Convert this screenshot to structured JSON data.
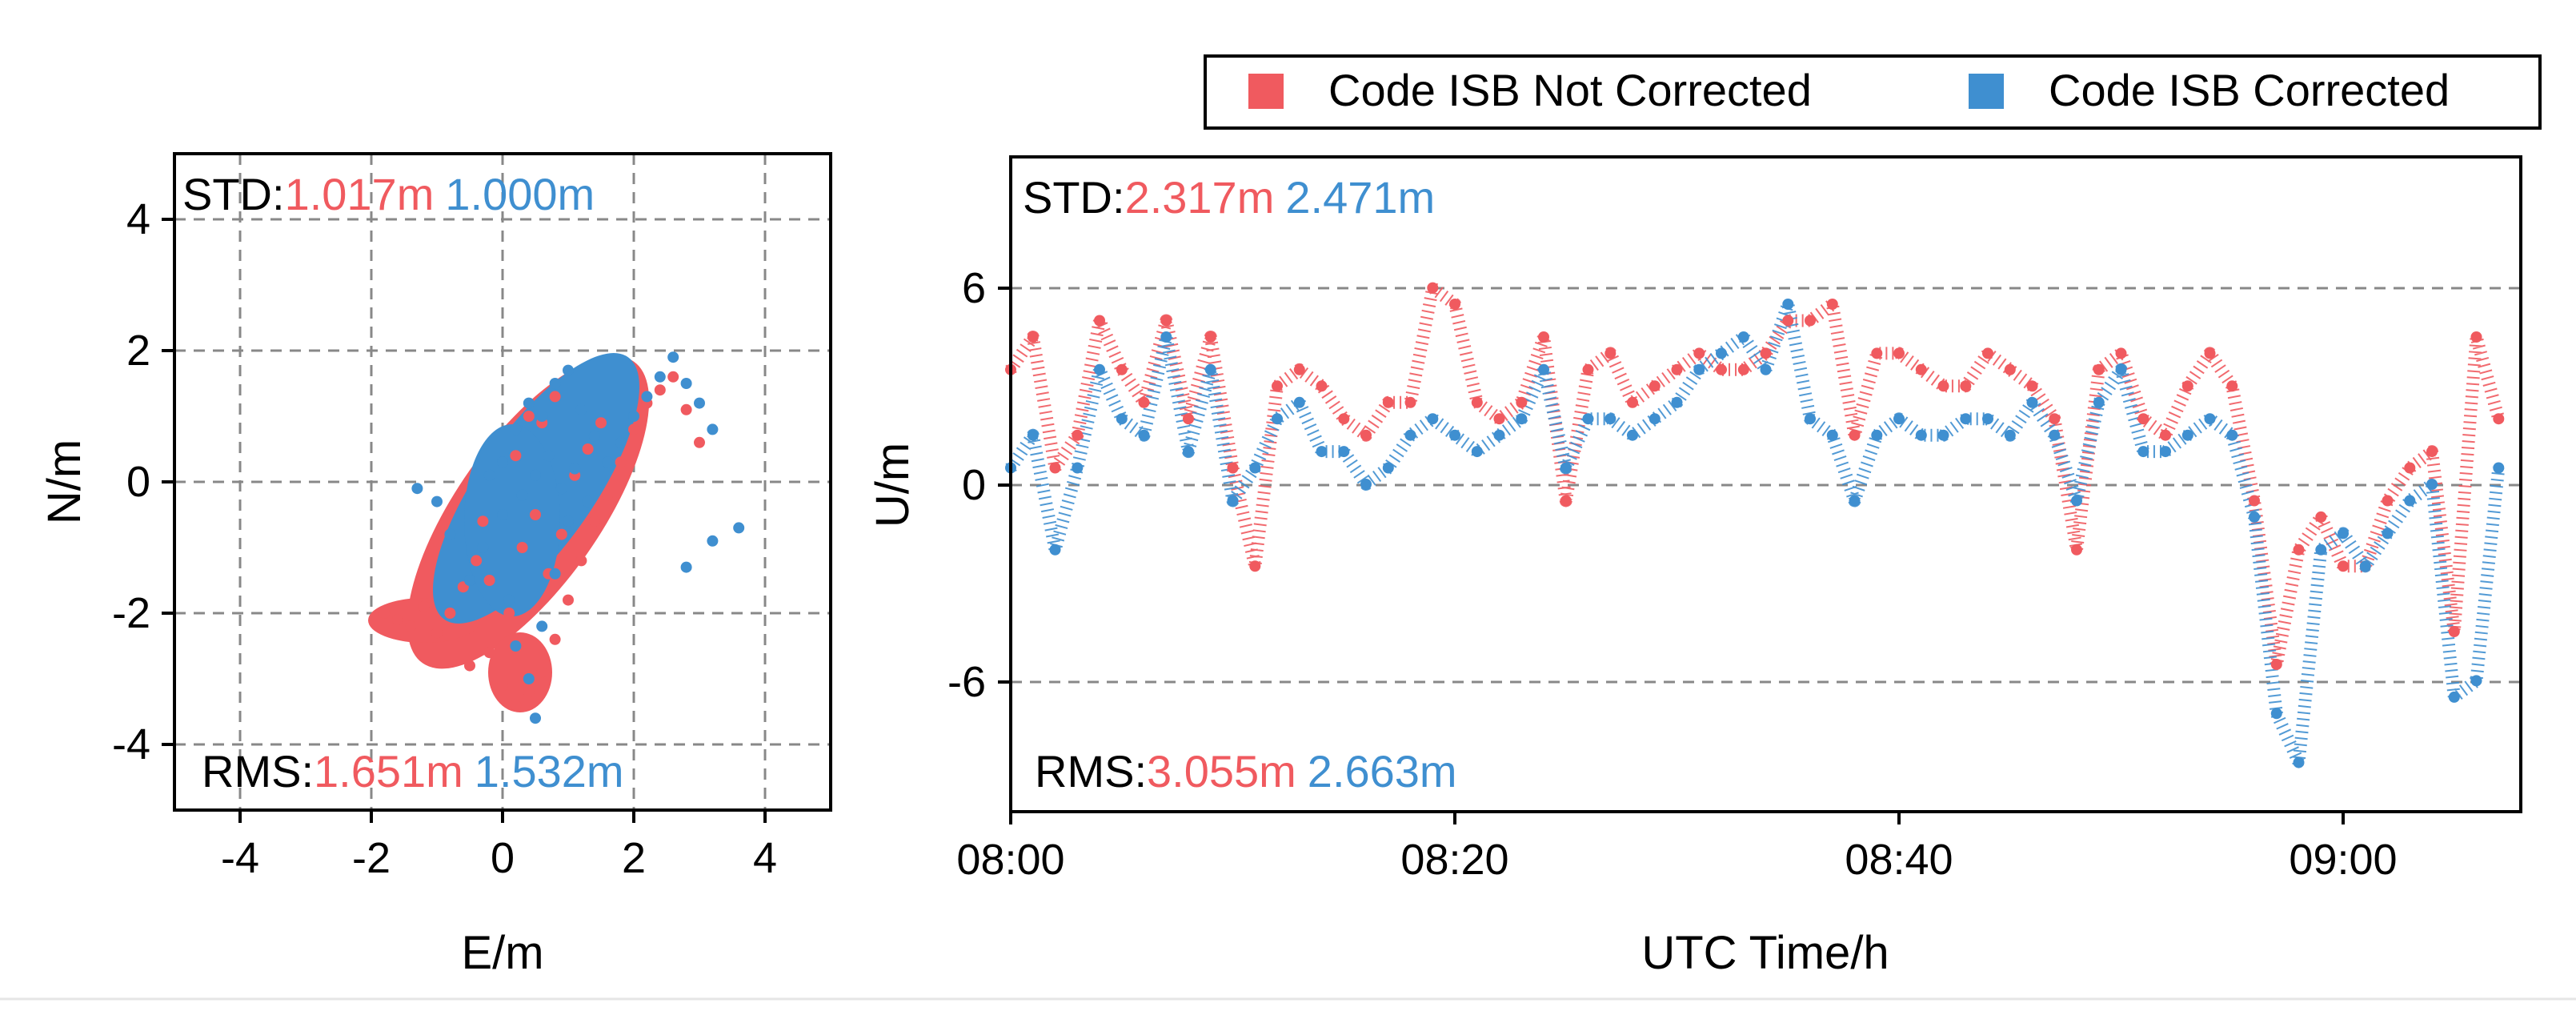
{
  "colors": {
    "not_corrected": "#f05a5f",
    "corrected": "#3f8fd0",
    "grid": "#888888",
    "axis": "#000000"
  },
  "legend": {
    "items": [
      "Code ISB Not Corrected",
      "Code ISB Corrected"
    ]
  },
  "chart_data": [
    {
      "type": "scatter",
      "title": "",
      "xlabel": "E/m",
      "ylabel": "N/m",
      "xlim": [
        -5,
        5
      ],
      "ylim": [
        -5,
        5
      ],
      "xticks": [
        -4,
        -2,
        0,
        2,
        4
      ],
      "yticks": [
        -4,
        -2,
        0,
        2,
        4
      ],
      "xtick_labels": [
        "-4",
        "-2",
        "0",
        "2",
        "4"
      ],
      "ytick_labels": [
        "-4",
        "-2",
        "0",
        "2",
        "4"
      ],
      "grid": true,
      "stats": {
        "std_label": "STD:",
        "rms_label": "RMS:",
        "std": [
          "1.017m",
          "1.000m"
        ],
        "rms": [
          "1.651m",
          "1.532m"
        ]
      },
      "series": [
        {
          "name": "Code ISB Not Corrected",
          "points": [
            [
              -1.8,
              -2.0
            ],
            [
              -1.6,
              -2.1
            ],
            [
              -1.4,
              -2.2
            ],
            [
              -1.2,
              -1.9
            ],
            [
              -1.0,
              -2.3
            ],
            [
              -0.8,
              -2.0
            ],
            [
              -0.6,
              -1.6
            ],
            [
              -0.4,
              -1.2
            ],
            [
              -0.2,
              -2.6
            ],
            [
              0.0,
              -3.1
            ],
            [
              0.2,
              -3.4
            ],
            [
              0.4,
              -3.2
            ],
            [
              0.6,
              -2.9
            ],
            [
              0.8,
              -2.4
            ],
            [
              1.0,
              -1.8
            ],
            [
              1.2,
              -1.2
            ],
            [
              1.4,
              -0.6
            ],
            [
              1.6,
              -0.2
            ],
            [
              1.8,
              0.3
            ],
            [
              2.0,
              0.8
            ],
            [
              2.2,
              1.2
            ],
            [
              2.4,
              1.4
            ],
            [
              2.6,
              1.6
            ],
            [
              2.8,
              1.1
            ],
            [
              3.0,
              0.6
            ],
            [
              -0.5,
              -2.8
            ],
            [
              -0.2,
              -1.5
            ],
            [
              0.1,
              -2.0
            ],
            [
              0.3,
              -1.0
            ],
            [
              0.5,
              -0.5
            ],
            [
              0.7,
              -1.4
            ],
            [
              0.9,
              -0.8
            ],
            [
              1.1,
              0.1
            ],
            [
              1.3,
              0.5
            ],
            [
              0.2,
              0.4
            ],
            [
              0.4,
              1.0
            ],
            [
              -0.3,
              -0.6
            ],
            [
              0.6,
              0.9
            ],
            [
              0.8,
              1.3
            ],
            [
              1.5,
              0.9
            ]
          ]
        },
        {
          "name": "Code ISB Corrected",
          "points": [
            [
              -1.3,
              -0.1
            ],
            [
              -1.0,
              -0.3
            ],
            [
              -0.8,
              -0.8
            ],
            [
              -0.5,
              -1.5
            ],
            [
              -0.3,
              -1.0
            ],
            [
              0.0,
              -0.5
            ],
            [
              0.0,
              0.3
            ],
            [
              0.2,
              0.8
            ],
            [
              0.4,
              1.2
            ],
            [
              0.6,
              1.0
            ],
            [
              0.8,
              1.5
            ],
            [
              1.0,
              1.7
            ],
            [
              1.2,
              1.1
            ],
            [
              1.4,
              0.7
            ],
            [
              1.6,
              0.3
            ],
            [
              1.8,
              0.6
            ],
            [
              2.0,
              1.0
            ],
            [
              2.2,
              1.3
            ],
            [
              2.4,
              1.6
            ],
            [
              2.6,
              1.9
            ],
            [
              2.8,
              1.5
            ],
            [
              3.0,
              1.2
            ],
            [
              3.2,
              0.8
            ],
            [
              3.6,
              -0.7
            ],
            [
              3.2,
              -0.9
            ],
            [
              2.8,
              -1.3
            ],
            [
              0.2,
              -2.5
            ],
            [
              0.4,
              -3.0
            ],
            [
              0.5,
              -3.6
            ],
            [
              0.6,
              -2.2
            ],
            [
              0.8,
              -1.4
            ],
            [
              1.0,
              -0.6
            ],
            [
              0.3,
              -0.2
            ],
            [
              0.5,
              0.1
            ],
            [
              0.7,
              0.4
            ],
            [
              0.9,
              -0.1
            ],
            [
              1.1,
              0.2
            ],
            [
              -0.2,
              0.1
            ],
            [
              0.1,
              -1.8
            ],
            [
              1.3,
              -0.3
            ]
          ]
        }
      ]
    },
    {
      "type": "scatter",
      "title": "",
      "xlabel": "UTC Time/h",
      "ylabel": "U/m",
      "xlim": [
        480,
        548
      ],
      "ylim": [
        -10,
        10
      ],
      "xticks": [
        480,
        500,
        520,
        540
      ],
      "xtick_labels": [
        "08:00",
        "08:20",
        "08:40",
        "09:00"
      ],
      "yticks": [
        -6,
        0,
        6
      ],
      "ytick_labels": [
        "-6",
        "0",
        "6"
      ],
      "grid": true,
      "stats": {
        "std_label": "STD:",
        "rms_label": "RMS:",
        "std": [
          "2.317m",
          "2.471m"
        ],
        "rms": [
          "3.055m",
          "2.663m"
        ]
      },
      "series": [
        {
          "name": "Code ISB Not Corrected",
          "points": [
            [
              480,
              3.5
            ],
            [
              481,
              4.5
            ],
            [
              482,
              0.5
            ],
            [
              483,
              1.5
            ],
            [
              484,
              5.0
            ],
            [
              485,
              3.5
            ],
            [
              486,
              2.5
            ],
            [
              487,
              5.0
            ],
            [
              488,
              2.0
            ],
            [
              489,
              4.5
            ],
            [
              490,
              0.5
            ],
            [
              491,
              -2.5
            ],
            [
              492,
              3.0
            ],
            [
              493,
              3.5
            ],
            [
              494,
              3.0
            ],
            [
              495,
              2.0
            ],
            [
              496,
              1.5
            ],
            [
              497,
              2.5
            ],
            [
              498,
              2.5
            ],
            [
              499,
              6.0
            ],
            [
              500,
              5.5
            ],
            [
              501,
              2.5
            ],
            [
              502,
              2.0
            ],
            [
              503,
              2.5
            ],
            [
              504,
              4.5
            ],
            [
              505,
              -0.5
            ],
            [
              506,
              3.5
            ],
            [
              507,
              4.0
            ],
            [
              508,
              2.5
            ],
            [
              509,
              3.0
            ],
            [
              510,
              3.5
            ],
            [
              511,
              4.0
            ],
            [
              512,
              3.5
            ],
            [
              513,
              3.5
            ],
            [
              514,
              4.0
            ],
            [
              515,
              5.0
            ],
            [
              516,
              5.0
            ],
            [
              517,
              5.5
            ],
            [
              518,
              1.5
            ],
            [
              519,
              4.0
            ],
            [
              520,
              4.0
            ],
            [
              521,
              3.5
            ],
            [
              522,
              3.0
            ],
            [
              523,
              3.0
            ],
            [
              524,
              4.0
            ],
            [
              525,
              3.5
            ],
            [
              526,
              3.0
            ],
            [
              527,
              2.0
            ],
            [
              528,
              -2.0
            ],
            [
              529,
              3.5
            ],
            [
              530,
              4.0
            ],
            [
              531,
              2.0
            ],
            [
              532,
              1.5
            ],
            [
              533,
              3.0
            ],
            [
              534,
              4.0
            ],
            [
              535,
              3.0
            ],
            [
              536,
              -0.5
            ],
            [
              537,
              -5.5
            ],
            [
              538,
              -2.0
            ],
            [
              539,
              -1.0
            ],
            [
              540,
              -2.5
            ],
            [
              541,
              -2.5
            ],
            [
              542,
              -0.5
            ],
            [
              543,
              0.5
            ],
            [
              544,
              1.0
            ],
            [
              545,
              -4.5
            ],
            [
              546,
              4.5
            ],
            [
              547,
              2.0
            ]
          ]
        },
        {
          "name": "Code ISB Corrected",
          "points": [
            [
              480,
              0.5
            ],
            [
              481,
              1.5
            ],
            [
              482,
              -2.0
            ],
            [
              483,
              0.5
            ],
            [
              484,
              3.5
            ],
            [
              485,
              2.0
            ],
            [
              486,
              1.5
            ],
            [
              487,
              4.5
            ],
            [
              488,
              1.0
            ],
            [
              489,
              3.5
            ],
            [
              490,
              -0.5
            ],
            [
              491,
              0.5
            ],
            [
              492,
              2.0
            ],
            [
              493,
              2.5
            ],
            [
              494,
              1.0
            ],
            [
              495,
              1.0
            ],
            [
              496,
              0.0
            ],
            [
              497,
              0.5
            ],
            [
              498,
              1.5
            ],
            [
              499,
              2.0
            ],
            [
              500,
              1.5
            ],
            [
              501,
              1.0
            ],
            [
              502,
              1.5
            ],
            [
              503,
              2.0
            ],
            [
              504,
              3.5
            ],
            [
              505,
              0.5
            ],
            [
              506,
              2.0
            ],
            [
              507,
              2.0
            ],
            [
              508,
              1.5
            ],
            [
              509,
              2.0
            ],
            [
              510,
              2.5
            ],
            [
              511,
              3.5
            ],
            [
              512,
              4.0
            ],
            [
              513,
              4.5
            ],
            [
              514,
              3.5
            ],
            [
              515,
              5.5
            ],
            [
              516,
              2.0
            ],
            [
              517,
              1.5
            ],
            [
              518,
              -0.5
            ],
            [
              519,
              1.5
            ],
            [
              520,
              2.0
            ],
            [
              521,
              1.5
            ],
            [
              522,
              1.5
            ],
            [
              523,
              2.0
            ],
            [
              524,
              2.0
            ],
            [
              525,
              1.5
            ],
            [
              526,
              2.5
            ],
            [
              527,
              1.5
            ],
            [
              528,
              -0.5
            ],
            [
              529,
              2.5
            ],
            [
              530,
              3.5
            ],
            [
              531,
              1.0
            ],
            [
              532,
              1.0
            ],
            [
              533,
              1.5
            ],
            [
              534,
              2.0
            ],
            [
              535,
              1.5
            ],
            [
              536,
              -1.0
            ],
            [
              537,
              -7.0
            ],
            [
              538,
              -8.5
            ],
            [
              539,
              -2.0
            ],
            [
              540,
              -1.5
            ],
            [
              541,
              -2.5
            ],
            [
              542,
              -1.5
            ],
            [
              543,
              -0.5
            ],
            [
              544,
              0.0
            ],
            [
              545,
              -6.5
            ],
            [
              546,
              -6.0
            ],
            [
              547,
              0.5
            ]
          ]
        }
      ]
    }
  ]
}
